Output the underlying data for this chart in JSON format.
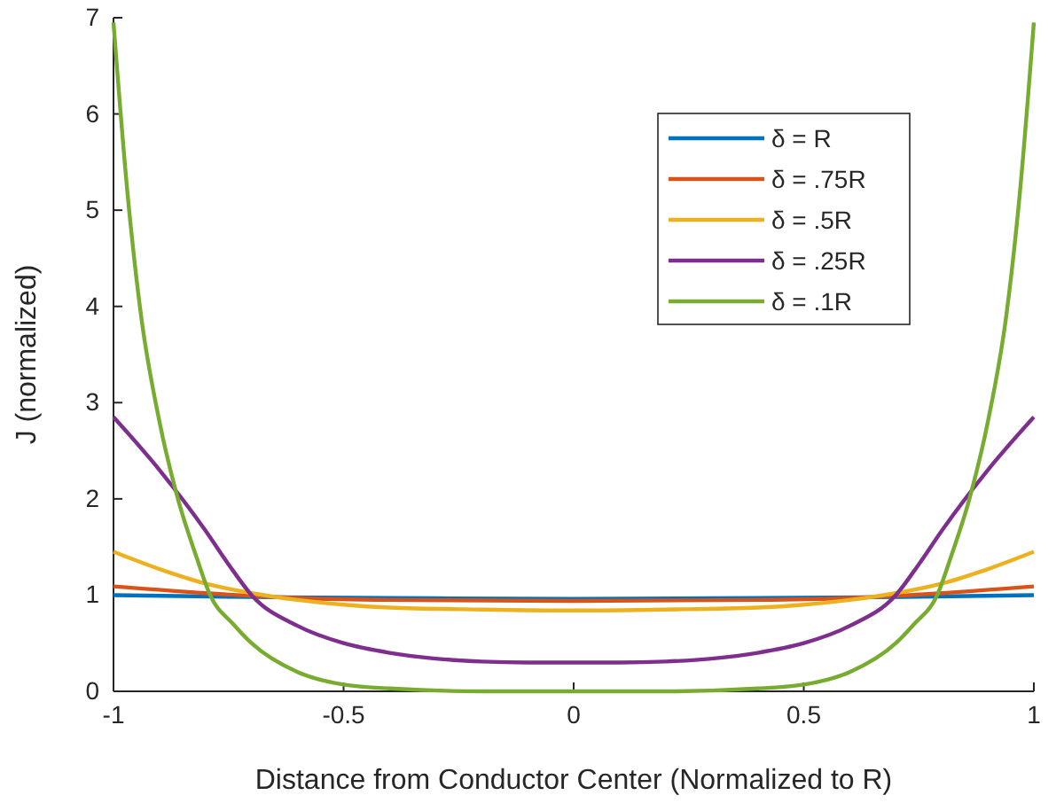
{
  "chart_data": {
    "type": "line",
    "xlabel": "Distance from Conductor Center (Normalized to R)",
    "ylabel": "J (normalized)",
    "xlim": [
      -1,
      1
    ],
    "ylim": [
      0,
      7
    ],
    "xticks": [
      -1,
      -0.5,
      0,
      0.5,
      1
    ],
    "yticks": [
      0,
      1,
      2,
      3,
      4,
      5,
      6,
      7
    ],
    "grid": false,
    "legend": "top right",
    "line_style": "solid",
    "marker": "none",
    "series": [
      {
        "name": "δ = R",
        "color": "#0072bd",
        "x": [
          -1,
          -0.7,
          -0.4,
          0,
          0.4,
          0.7,
          1
        ],
        "values": [
          1.0,
          0.98,
          0.97,
          0.96,
          0.97,
          0.98,
          1.0
        ]
      },
      {
        "name": "δ = .75R",
        "color": "#d95319",
        "x": [
          -1,
          -0.8,
          -0.6,
          -0.4,
          0,
          0.4,
          0.6,
          0.8,
          1
        ],
        "values": [
          1.09,
          1.02,
          0.97,
          0.95,
          0.94,
          0.95,
          0.97,
          1.02,
          1.09
        ]
      },
      {
        "name": "δ = .5R",
        "color": "#edb120",
        "x": [
          -1,
          -0.9,
          -0.8,
          -0.7,
          -0.6,
          -0.5,
          -0.4,
          -0.2,
          0,
          0.2,
          0.4,
          0.5,
          0.6,
          0.7,
          0.8,
          0.9,
          1
        ],
        "values": [
          1.45,
          1.27,
          1.12,
          1.02,
          0.95,
          0.9,
          0.87,
          0.85,
          0.84,
          0.85,
          0.87,
          0.9,
          0.95,
          1.02,
          1.12,
          1.27,
          1.45
        ]
      },
      {
        "name": "δ = .25R",
        "color": "#7e2f8e",
        "x": [
          -1,
          -0.9,
          -0.8,
          -0.75,
          -0.7,
          -0.6,
          -0.5,
          -0.4,
          -0.3,
          -0.2,
          -0.1,
          0,
          0.1,
          0.2,
          0.3,
          0.4,
          0.5,
          0.6,
          0.7,
          0.75,
          0.8,
          0.9,
          1
        ],
        "values": [
          2.85,
          2.3,
          1.67,
          1.32,
          1.0,
          0.68,
          0.5,
          0.4,
          0.34,
          0.31,
          0.3,
          0.3,
          0.3,
          0.31,
          0.34,
          0.4,
          0.5,
          0.68,
          1.0,
          1.32,
          1.67,
          2.3,
          2.85
        ]
      },
      {
        "name": "δ = .1R",
        "color": "#77ac30",
        "x": [
          -1,
          -0.97,
          -0.94,
          -0.9,
          -0.86,
          -0.82,
          -0.79,
          -0.74,
          -0.7,
          -0.6,
          -0.5,
          -0.4,
          -0.2,
          0,
          0.2,
          0.4,
          0.5,
          0.6,
          0.7,
          0.74,
          0.79,
          0.82,
          0.86,
          0.9,
          0.94,
          0.97,
          1
        ],
        "values": [
          6.95,
          5.2,
          3.9,
          2.8,
          2.0,
          1.4,
          1.0,
          0.7,
          0.5,
          0.2,
          0.07,
          0.03,
          0,
          0,
          0,
          0.03,
          0.07,
          0.2,
          0.5,
          0.7,
          1.0,
          1.4,
          2.0,
          2.8,
          3.9,
          5.2,
          6.95
        ]
      }
    ]
  }
}
